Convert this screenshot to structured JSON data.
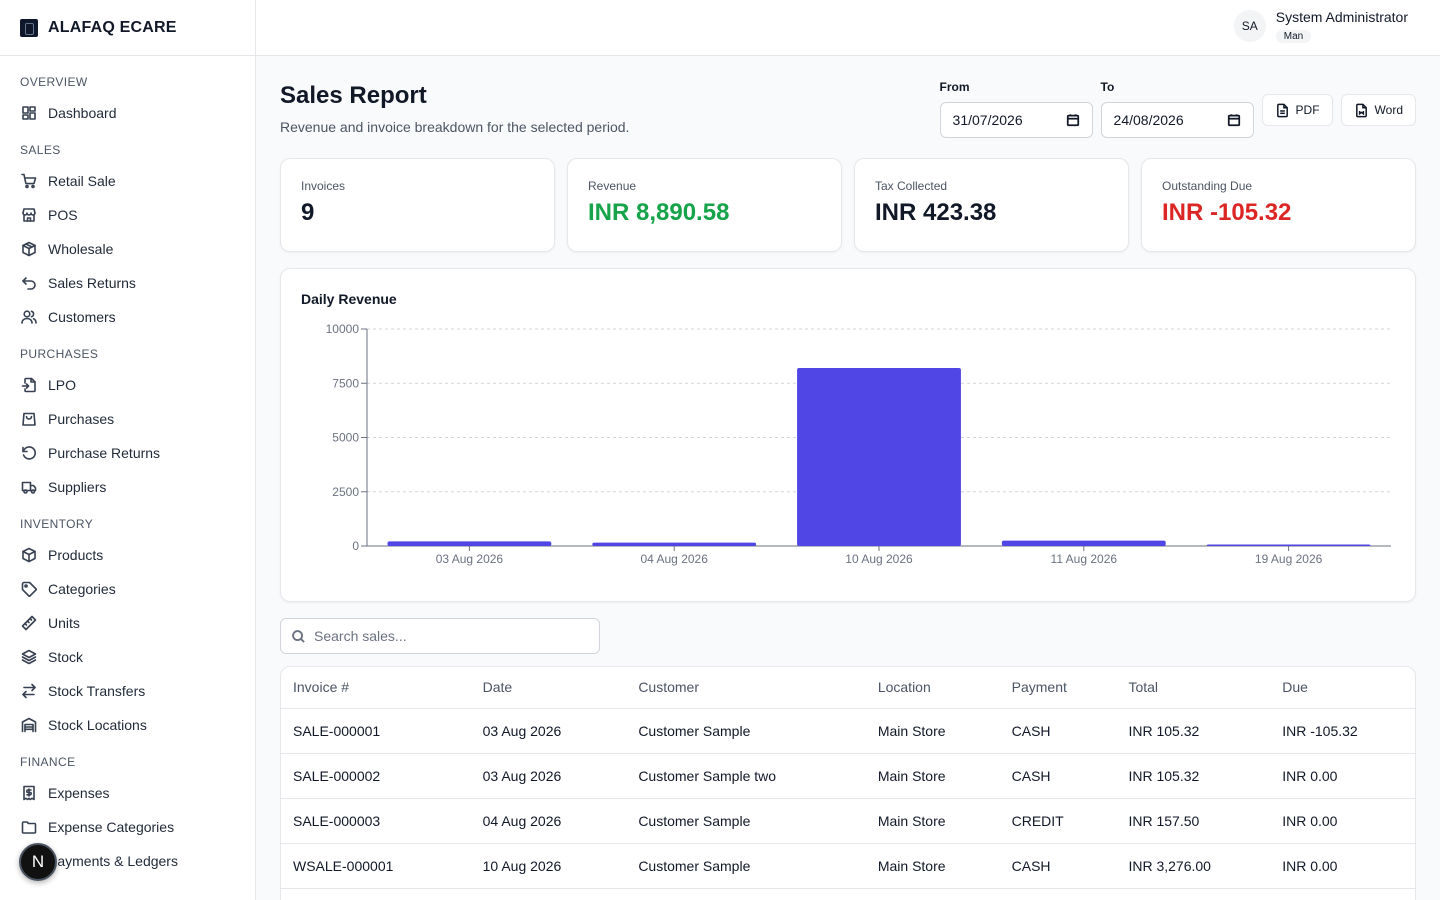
{
  "brand": {
    "name": "ALAFAQ ECARE"
  },
  "sidebar": {
    "sections": [
      {
        "title": "OVERVIEW",
        "items": [
          {
            "label": "Dashboard",
            "icon": "dashboard-icon"
          }
        ]
      },
      {
        "title": "SALES",
        "items": [
          {
            "label": "Retail Sale",
            "icon": "cart-icon"
          },
          {
            "label": "POS",
            "icon": "store-icon"
          },
          {
            "label": "Wholesale",
            "icon": "package-icon"
          },
          {
            "label": "Sales Returns",
            "icon": "undo-icon"
          },
          {
            "label": "Customers",
            "icon": "users-icon"
          }
        ]
      },
      {
        "title": "PURCHASES",
        "items": [
          {
            "label": "LPO",
            "icon": "file-import-icon"
          },
          {
            "label": "Purchases",
            "icon": "shopping-bag-icon"
          },
          {
            "label": "Purchase Returns",
            "icon": "rotate-ccw-icon"
          },
          {
            "label": "Suppliers",
            "icon": "truck-icon"
          }
        ]
      },
      {
        "title": "INVENTORY",
        "items": [
          {
            "label": "Products",
            "icon": "box-icon"
          },
          {
            "label": "Categories",
            "icon": "tag-icon"
          },
          {
            "label": "Units",
            "icon": "ruler-icon"
          },
          {
            "label": "Stock",
            "icon": "layers-icon"
          },
          {
            "label": "Stock Transfers",
            "icon": "transfer-icon"
          },
          {
            "label": "Stock Locations",
            "icon": "warehouse-icon"
          }
        ]
      },
      {
        "title": "FINANCE",
        "items": [
          {
            "label": "Expenses",
            "icon": "receipt-icon"
          },
          {
            "label": "Expense Categories",
            "icon": "folder-icon"
          },
          {
            "label": "Payments & Ledgers",
            "icon": "ledger-icon"
          }
        ]
      }
    ]
  },
  "badge": {
    "letter": "N"
  },
  "user": {
    "initials": "SA",
    "name": "System Administrator",
    "role": "Man"
  },
  "page": {
    "title": "Sales Report",
    "subtitle": "Revenue and invoice breakdown for the selected period."
  },
  "filters": {
    "from_label": "From",
    "from_value": "31/07/2026",
    "to_label": "To",
    "to_value": "24/08/2026",
    "pdf_label": "PDF",
    "word_label": "Word"
  },
  "stats": [
    {
      "label": "Invoices",
      "value": "9",
      "color": "#111827"
    },
    {
      "label": "Revenue",
      "value": "INR 8,890.58",
      "color": "#16a34a"
    },
    {
      "label": "Tax Collected",
      "value": "INR 423.38",
      "color": "#111827"
    },
    {
      "label": "Outstanding Due",
      "value": "INR -105.32",
      "color": "#dc2626"
    }
  ],
  "chart_data": {
    "type": "bar",
    "title": "Daily Revenue",
    "categories": [
      "03 Aug 2026",
      "04 Aug 2026",
      "10 Aug 2026",
      "11 Aug 2026",
      "19 Aug 2026"
    ],
    "values": [
      210.64,
      157.5,
      8200,
      250,
      72
    ],
    "ylim": [
      0,
      10000
    ],
    "yticks": [
      0,
      2500,
      5000,
      7500,
      10000
    ],
    "bar_color": "#4f46e5",
    "grid": true
  },
  "search": {
    "placeholder": "Search sales..."
  },
  "table": {
    "columns": [
      "Invoice #",
      "Date",
      "Customer",
      "Location",
      "Payment",
      "Total",
      "Due"
    ],
    "rows": [
      [
        "SALE-000001",
        "03 Aug 2026",
        "Customer Sample",
        "Main Store",
        "CASH",
        "INR 105.32",
        "INR -105.32"
      ],
      [
        "SALE-000002",
        "03 Aug 2026",
        "Customer Sample two",
        "Main Store",
        "CASH",
        "INR 105.32",
        "INR 0.00"
      ],
      [
        "SALE-000003",
        "04 Aug 2026",
        "Customer Sample",
        "Main Store",
        "CREDIT",
        "INR 157.50",
        "INR 0.00"
      ],
      [
        "WSALE-000001",
        "10 Aug 2026",
        "Customer Sample",
        "Main Store",
        "CASH",
        "INR 3,276.00",
        "INR 0.00"
      ]
    ]
  }
}
